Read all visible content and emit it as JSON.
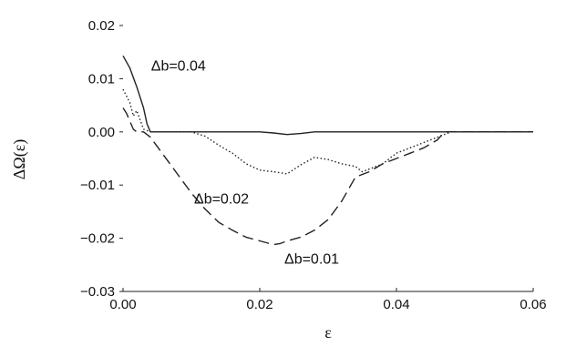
{
  "chart_data": {
    "type": "line",
    "xlabel": "ε",
    "ylabel": "ΔΩ(ε)",
    "xlim": [
      0.0,
      0.06
    ],
    "ylim": [
      -0.03,
      0.02
    ],
    "x_ticks": [
      "0.00",
      "0.02",
      "0.04",
      "0.06"
    ],
    "y_ticks": [
      "0.02",
      "0.01",
      "0.00",
      "−0.01",
      "−0.02",
      "−0.03"
    ],
    "grid": false,
    "series": [
      {
        "name": "Δb=0.04",
        "style": "solid",
        "x": [
          0.0,
          0.001,
          0.002,
          0.003,
          0.0035,
          0.004,
          0.005,
          0.01,
          0.02,
          0.022,
          0.024,
          0.026,
          0.028,
          0.03,
          0.04,
          0.05,
          0.06
        ],
        "y": [
          0.0143,
          0.012,
          0.0085,
          0.0045,
          0.0015,
          0.0,
          0.0,
          0.0,
          0.0,
          -0.0002,
          -0.0005,
          -0.0003,
          0.0,
          0.0,
          0.0,
          0.0,
          0.0
        ]
      },
      {
        "name": "Δb=0.02",
        "style": "dotted",
        "x": [
          0.0,
          0.001,
          0.0015,
          0.002,
          0.003,
          0.004,
          0.005,
          0.01,
          0.012,
          0.014,
          0.016,
          0.018,
          0.02,
          0.022,
          0.024,
          0.026,
          0.028,
          0.03,
          0.032,
          0.034,
          0.035,
          0.036,
          0.038,
          0.04,
          0.042,
          0.044,
          0.046,
          0.048,
          0.05,
          0.06
        ],
        "y": [
          0.008,
          0.0055,
          0.003,
          0.004,
          0.0005,
          0.0,
          0.0,
          0.0,
          -0.0008,
          -0.0025,
          -0.004,
          -0.006,
          -0.0072,
          -0.0075,
          -0.0079,
          -0.0062,
          -0.0048,
          -0.0052,
          -0.006,
          -0.0065,
          -0.0075,
          -0.007,
          -0.006,
          -0.004,
          -0.003,
          -0.002,
          -0.001,
          0.0,
          0.0,
          0.0
        ]
      },
      {
        "name": "Δb=0.01",
        "style": "dashed",
        "x": [
          0.0,
          0.0005,
          0.001,
          0.0015,
          0.002,
          0.003,
          0.004,
          0.006,
          0.008,
          0.01,
          0.012,
          0.014,
          0.016,
          0.018,
          0.02,
          0.022,
          0.023,
          0.024,
          0.026,
          0.028,
          0.03,
          0.032,
          0.034,
          0.036,
          0.038,
          0.04,
          0.042,
          0.044,
          0.046,
          0.047,
          0.048,
          0.05,
          0.06
        ],
        "y": [
          0.0045,
          0.0035,
          0.002,
          0.0005,
          0.0,
          0.0,
          -0.001,
          -0.0045,
          -0.008,
          -0.0115,
          -0.0145,
          -0.017,
          -0.0185,
          -0.0198,
          -0.0205,
          -0.0212,
          -0.021,
          -0.0205,
          -0.0198,
          -0.0185,
          -0.0165,
          -0.013,
          -0.0085,
          -0.0075,
          -0.006,
          -0.005,
          -0.004,
          -0.003,
          -0.0015,
          0.0,
          0.0,
          0.0,
          0.0
        ]
      }
    ],
    "annotations": [
      {
        "text": "Δb=0.04",
        "x": 0.0041,
        "y": 0.0115
      },
      {
        "text": "Δb=0.02",
        "x": 0.0104,
        "y": -0.0135
      },
      {
        "text": "Δb=0.01",
        "x": 0.0236,
        "y": -0.0248
      }
    ]
  }
}
